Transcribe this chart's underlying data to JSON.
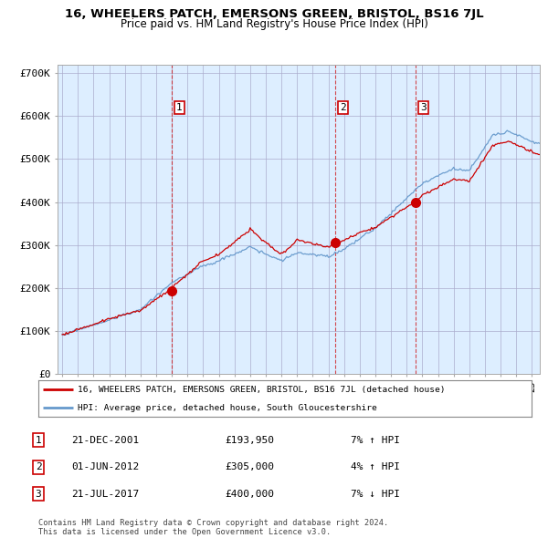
{
  "title": "16, WHEELERS PATCH, EMERSONS GREEN, BRISTOL, BS16 7JL",
  "subtitle": "Price paid vs. HM Land Registry's House Price Index (HPI)",
  "hpi_label": "HPI: Average price, detached house, South Gloucestershire",
  "property_label": "16, WHEELERS PATCH, EMERSONS GREEN, BRISTOL, BS16 7JL (detached house)",
  "sales": [
    {
      "num": 1,
      "date": "21-DEC-2001",
      "price": 193950,
      "pct": "7%",
      "dir": "↑"
    },
    {
      "num": 2,
      "date": "01-JUN-2012",
      "price": 305000,
      "pct": "4%",
      "dir": "↑"
    },
    {
      "num": 3,
      "date": "21-JUL-2017",
      "price": 400000,
      "pct": "7%",
      "dir": "↓"
    }
  ],
  "sale_years": [
    2001.97,
    2012.42,
    2017.55
  ],
  "sale_prices": [
    193950,
    305000,
    400000
  ],
  "copyright": "Contains HM Land Registry data © Crown copyright and database right 2024.\nThis data is licensed under the Open Government Licence v3.0.",
  "hpi_color": "#6699cc",
  "property_color": "#cc0000",
  "vline_color": "#cc0000",
  "background_color": "#ffffff",
  "plot_bg_color": "#ddeeff",
  "grid_color": "#aaaacc",
  "ylim": [
    0,
    720000
  ],
  "yticks": [
    0,
    100000,
    200000,
    300000,
    400000,
    500000,
    600000,
    700000
  ],
  "ytick_labels": [
    "£0",
    "£100K",
    "£200K",
    "£300K",
    "£400K",
    "£500K",
    "£600K",
    "£700K"
  ]
}
